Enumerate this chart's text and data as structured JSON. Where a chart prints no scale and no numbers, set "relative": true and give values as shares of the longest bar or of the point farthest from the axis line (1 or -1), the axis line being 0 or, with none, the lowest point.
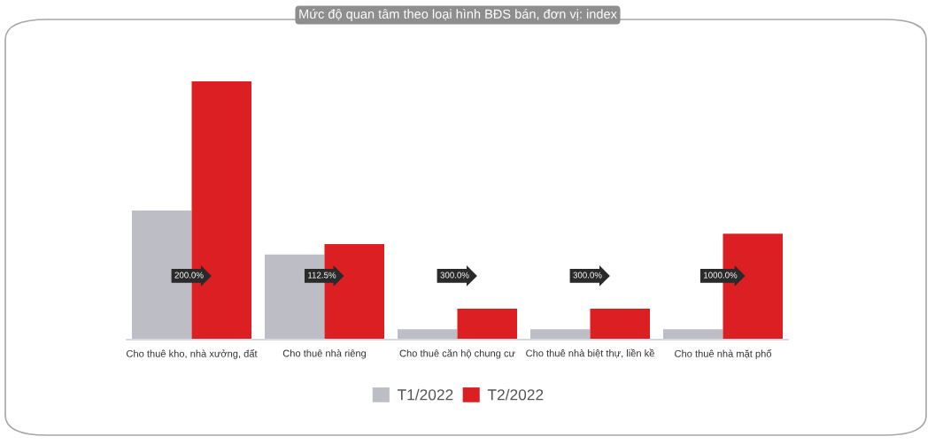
{
  "chart_data": {
    "type": "bar",
    "title": "Mức độ quan tâm theo loại hình BĐS bán, đơn vị: index",
    "categories": [
      "Cho thuê kho, nhà xưởng, đất",
      "Cho thuê nhà riêng",
      "Cho thuê căn hộ chung cư",
      "Cho thuê nhà biệt thự, liền kề",
      "Cho thuê nhà mặt phố"
    ],
    "series": [
      {
        "name": "T1/2022",
        "color": "#bcbdc5",
        "values": [
          0.5,
          0.33,
          0.04,
          0.04,
          0.04
        ]
      },
      {
        "name": "T2/2022",
        "color": "#dc1f22",
        "values": [
          1,
          0.37,
          0.12,
          0.12,
          0.41
        ]
      }
    ],
    "relative": true,
    "annotations": [
      "200.0%",
      "112.5%",
      "300.0%",
      "300.0%",
      "1000.0%"
    ],
    "legend": "bottom",
    "grid": false
  }
}
